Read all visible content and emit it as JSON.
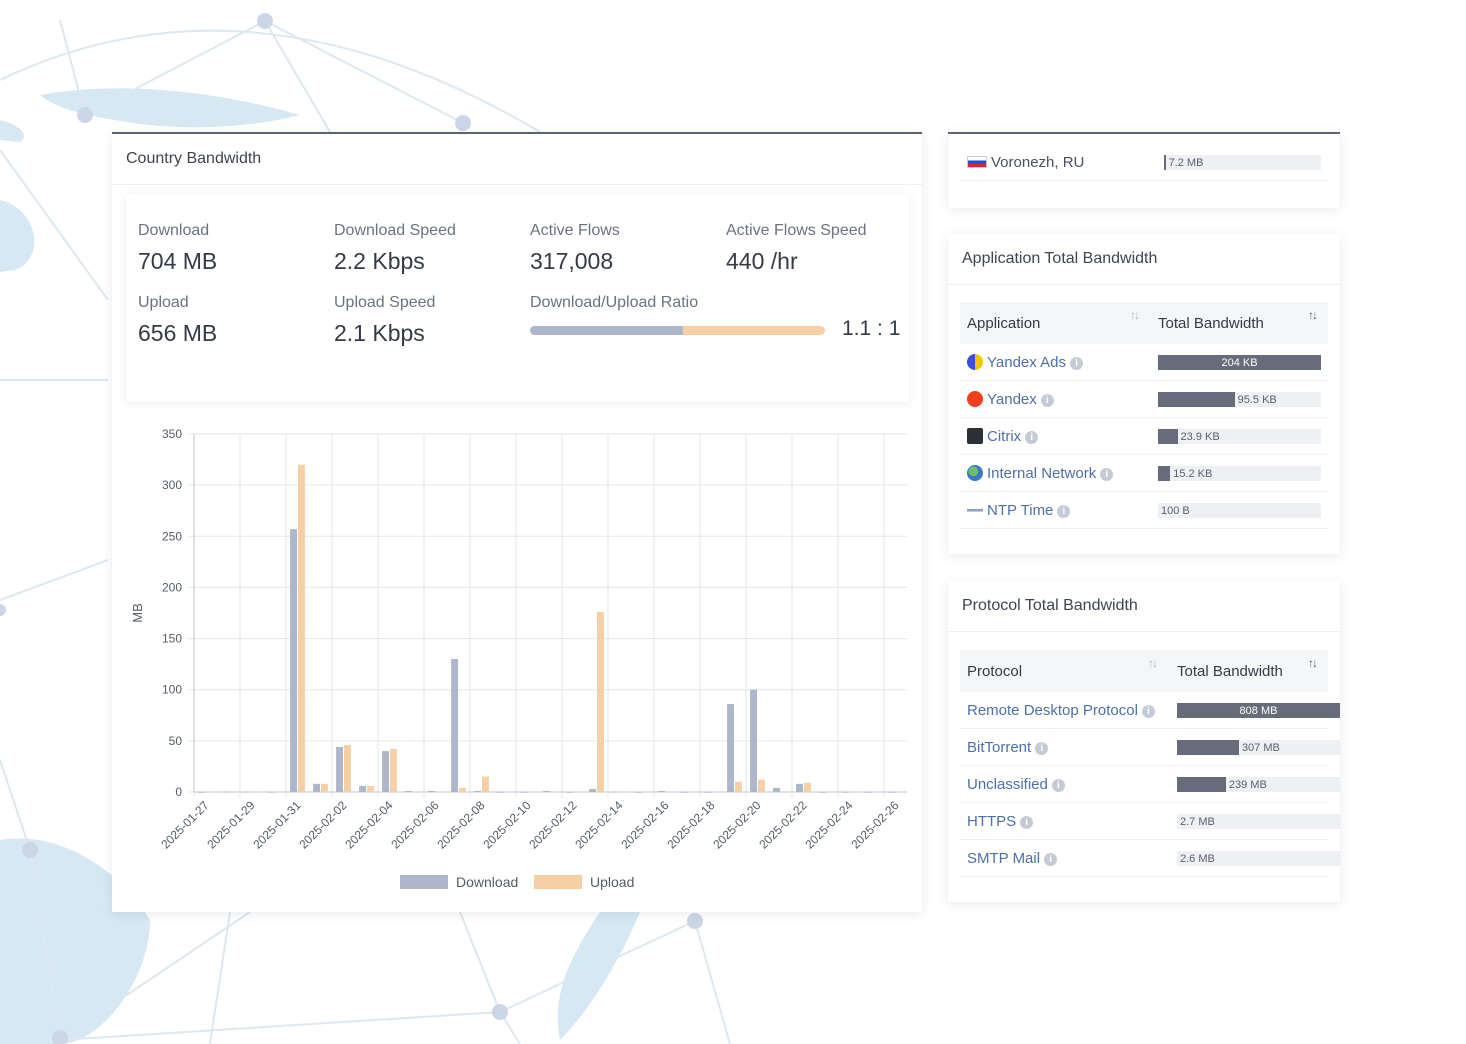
{
  "country_panel": {
    "title": "Country Bandwidth",
    "stats": {
      "download_label": "Download",
      "download_value": "704 MB",
      "download_speed_label": "Download Speed",
      "download_speed_value": "2.2 Kbps",
      "active_flows_label": "Active Flows",
      "active_flows_value": "317,008",
      "active_flows_speed_label": "Active Flows Speed",
      "active_flows_speed_value": "440 /hr",
      "upload_label": "Upload",
      "upload_value": "656 MB",
      "upload_speed_label": "Upload Speed",
      "upload_speed_value": "2.1 Kbps",
      "ratio_label": "Download/Upload Ratio",
      "ratio_value": "1.1 : 1",
      "ratio_download_fraction": 0.52
    }
  },
  "chart_data": {
    "type": "bar",
    "title": "",
    "xlabel": "",
    "ylabel": "MB",
    "ylim": [
      0,
      350
    ],
    "yticks": [
      0,
      50,
      100,
      150,
      200,
      250,
      300,
      350
    ],
    "grid": true,
    "legend_position": "bottom",
    "categories": [
      "2025-01-27",
      "2025-01-28",
      "2025-01-29",
      "2025-01-30",
      "2025-01-31",
      "2025-02-01",
      "2025-02-02",
      "2025-02-03",
      "2025-02-04",
      "2025-02-05",
      "2025-02-06",
      "2025-02-07",
      "2025-02-08",
      "2025-02-09",
      "2025-02-10",
      "2025-02-11",
      "2025-02-12",
      "2025-02-13",
      "2025-02-14",
      "2025-02-15",
      "2025-02-16",
      "2025-02-17",
      "2025-02-18",
      "2025-02-19",
      "2025-02-20",
      "2025-02-21",
      "2025-02-22",
      "2025-02-23",
      "2025-02-24",
      "2025-02-25",
      "2025-02-26"
    ],
    "tick_labels": [
      "2025-01-27",
      "2025-01-29",
      "2025-01-31",
      "2025-02-02",
      "2025-02-04",
      "2025-02-06",
      "2025-02-08",
      "2025-02-10",
      "2025-02-12",
      "2025-02-14",
      "2025-02-16",
      "2025-02-18",
      "2025-02-20",
      "2025-02-22",
      "2025-02-24",
      "2025-02-26"
    ],
    "series": [
      {
        "name": "Download",
        "color": "#aeb6cc",
        "values": [
          0.3,
          0.5,
          0.5,
          0.4,
          257,
          8,
          44,
          6,
          40,
          1,
          1,
          130,
          1,
          0.3,
          0.3,
          1,
          0.3,
          3,
          0.5,
          0.3,
          1,
          0.3,
          0.3,
          86,
          100,
          4,
          8,
          0.3,
          0.3,
          0.3,
          0.3
        ]
      },
      {
        "name": "Upload",
        "color": "#f7cfa4",
        "values": [
          0,
          0,
          0,
          0,
          320,
          8,
          46,
          6,
          42,
          0,
          0,
          4,
          15,
          0,
          0,
          0,
          0,
          176,
          0,
          0,
          0,
          0,
          0,
          10,
          12,
          0,
          9,
          0,
          0,
          0,
          0
        ]
      }
    ]
  },
  "city_panel": {
    "rows": [
      {
        "name": "Voronezh, RU",
        "value": "7.2 MB",
        "fraction": 0.01
      }
    ]
  },
  "app_panel": {
    "title": "Application Total Bandwidth",
    "col_name": "Application",
    "col_value": "Total Bandwidth",
    "rows": [
      {
        "name": "Yandex Ads",
        "value": "204 KB",
        "fraction": 1.0,
        "icon": "yandex-ads-icon"
      },
      {
        "name": "Yandex",
        "value": "95.5 KB",
        "fraction": 0.47,
        "icon": "yandex-icon"
      },
      {
        "name": "Citrix",
        "value": "23.9 KB",
        "fraction": 0.12,
        "icon": "citrix-icon"
      },
      {
        "name": "Internal Network",
        "value": "15.2 KB",
        "fraction": 0.075,
        "icon": "network-globe-icon"
      },
      {
        "name": "NTP Time",
        "value": "100 B",
        "fraction": 0.0,
        "icon": "ntp-icon"
      }
    ]
  },
  "proto_panel": {
    "title": "Protocol Total Bandwidth",
    "col_name": "Protocol",
    "col_value": "Total Bandwidth",
    "rows": [
      {
        "name": "Remote Desktop Protocol",
        "value": "808 MB",
        "fraction": 1.0
      },
      {
        "name": "BitTorrent",
        "value": "307 MB",
        "fraction": 0.38
      },
      {
        "name": "Unclassified",
        "value": "239 MB",
        "fraction": 0.3
      },
      {
        "name": "HTTPS",
        "value": "2.7 MB",
        "fraction": 0.0
      },
      {
        "name": "SMTP Mail",
        "value": "2.6 MB",
        "fraction": 0.0
      }
    ]
  }
}
